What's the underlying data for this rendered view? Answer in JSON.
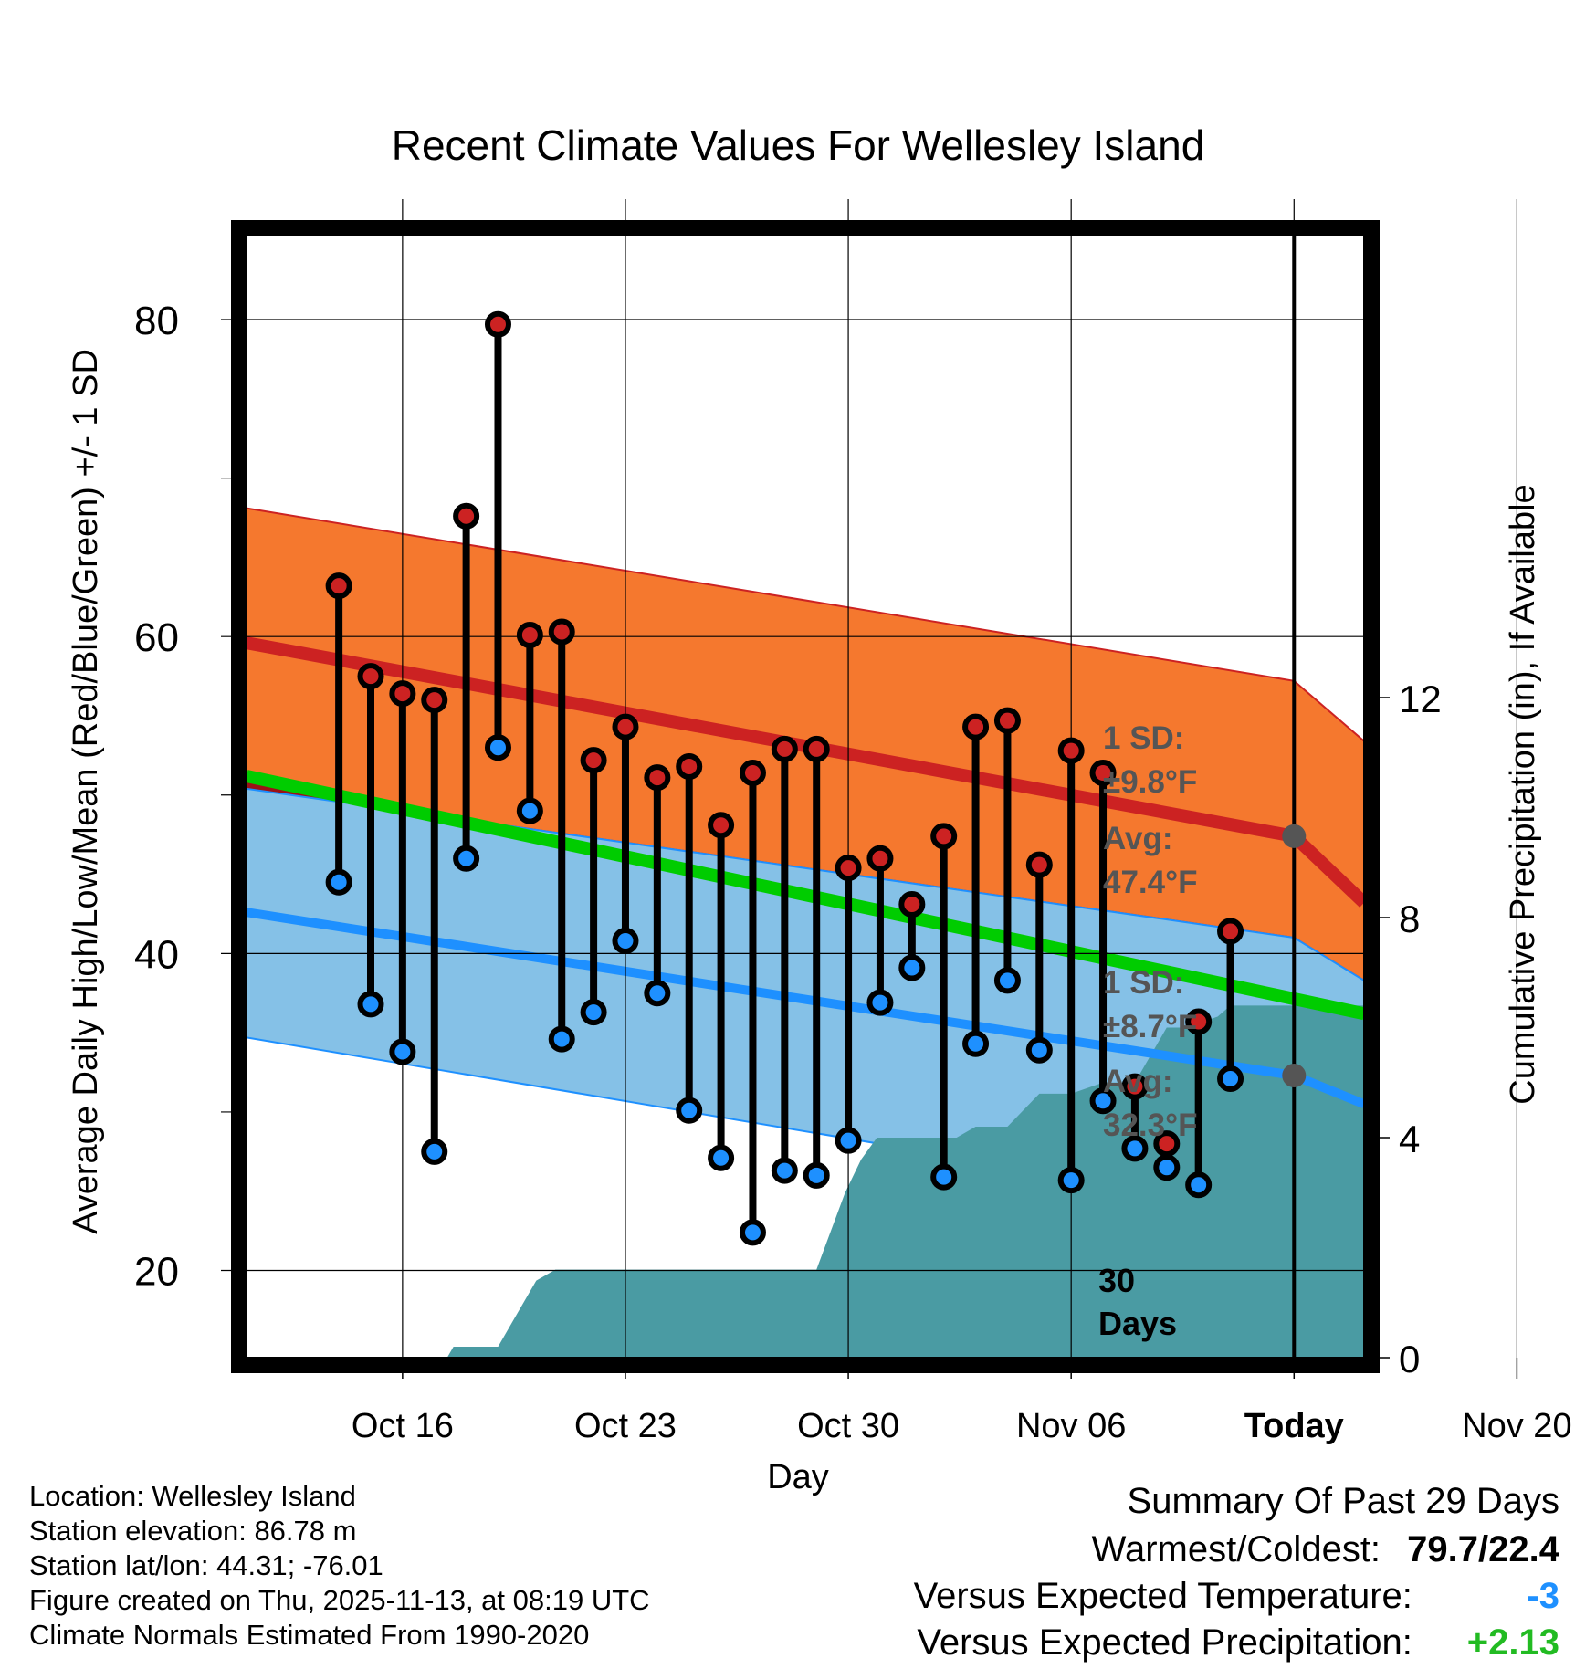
{
  "chart_data": {
    "type": "scatter",
    "title": "Recent Climate Values For Wellesley Island",
    "xlabel": "Day",
    "ylabel": "Average Daily High/Low/Mean (Red/Blue/Green) +/- 1 SD",
    "y2label": "Cumulative Precipitation (in), If Available",
    "xlim": [
      -2.9,
      32.2
    ],
    "ylim": [
      14.5,
      85.3
    ],
    "y2lim": [
      0,
      20.4
    ],
    "grid": true,
    "x_ticks": [
      {
        "day": 2,
        "label": "Oct 16"
      },
      {
        "day": 9,
        "label": "Oct 23"
      },
      {
        "day": 16,
        "label": "Oct 30"
      },
      {
        "day": 23,
        "label": "Nov 06"
      },
      {
        "day": 30,
        "label": "Today"
      },
      {
        "day": 37,
        "label": "Nov 20"
      }
    ],
    "y_ticks": [
      "20",
      "40",
      "60",
      "80"
    ],
    "y2_ticks": [
      "0",
      "4",
      "8",
      "12"
    ],
    "today_day": 30,
    "today_label_line1": "30",
    "today_label_line2": "Days",
    "normal_high": {
      "days": [
        -2.9,
        30,
        32.2
      ],
      "mean": [
        59.6,
        47.4,
        43.2
      ],
      "upper": [
        68.1,
        57.2,
        53.4
      ],
      "label_sd_line1": "1 SD:",
      "label_sd_line2": "±9.8°F",
      "label_avg_line1": "Avg:",
      "label_avg_line2": "47.4°F",
      "mean_color": "#cc2222",
      "band_color": "#f5782e"
    },
    "normal_low": {
      "days": [
        -2.9,
        30,
        32.2
      ],
      "mean": [
        42.6,
        32.3,
        30.5
      ],
      "upper": [
        50.4,
        41.0,
        38.3
      ],
      "lower": [
        34.7,
        23.6,
        22.2
      ],
      "label_sd_line1": "1 SD:",
      "label_sd_line2": "±8.7°F",
      "label_avg_line1": "Avg:",
      "label_avg_line2": "32.3°F",
      "mean_color": "#1e90ff",
      "band_color": "#85c1e7"
    },
    "normal_mean": {
      "days": [
        -2.9,
        32.2
      ],
      "values": [
        51.2,
        36.2
      ],
      "color": "#00cc00"
    },
    "daily": {
      "days": [
        0,
        1,
        2,
        3,
        4,
        5,
        6,
        7,
        8,
        9,
        10,
        11,
        12,
        13,
        14,
        15,
        16,
        17,
        18,
        19,
        20,
        21,
        22,
        23,
        24,
        25,
        26,
        27,
        28
      ],
      "high": [
        63.2,
        57.5,
        56.4,
        56.0,
        67.6,
        79.7,
        60.1,
        60.3,
        52.2,
        54.3,
        51.1,
        51.8,
        48.1,
        51.4,
        52.9,
        52.9,
        45.4,
        46.0,
        43.1,
        47.4,
        54.3,
        54.7,
        45.6,
        52.8,
        51.4,
        31.6,
        28.0,
        35.7,
        41.4
      ],
      "low": [
        44.5,
        36.8,
        33.8,
        27.5,
        46.0,
        53.0,
        49.0,
        34.6,
        36.3,
        40.8,
        37.5,
        30.1,
        27.1,
        22.4,
        26.3,
        26.0,
        28.2,
        36.9,
        39.1,
        25.9,
        34.3,
        38.3,
        33.9,
        25.7,
        30.7,
        27.7,
        26.5,
        25.4,
        32.1
      ],
      "high_color": "#cc2222",
      "low_color": "#1e90ff"
    },
    "precip_cumulative": {
      "days": [
        -2.9,
        3.4,
        3.6,
        4.8,
        5.0,
        5.6,
        6.2,
        6.8,
        7.8,
        8.4,
        9.0,
        10.0,
        11.0,
        12.0,
        13.0,
        14.0,
        15.0,
        15.9,
        16.4,
        16.9,
        17.3,
        18.0,
        19.0,
        19.4,
        20.0,
        21.0,
        22.0,
        23.0,
        24.0,
        25.0,
        26.0,
        26.6,
        27.6,
        28.0,
        30.0,
        32.2
      ],
      "values": [
        0,
        0,
        0.2,
        0.2,
        0.2,
        0.8,
        1.4,
        1.6,
        1.6,
        1.6,
        1.6,
        1.6,
        1.6,
        1.6,
        1.6,
        1.6,
        1.6,
        3.0,
        3.6,
        4.0,
        4.0,
        4.0,
        4.0,
        4.0,
        4.2,
        4.2,
        4.8,
        4.8,
        5.0,
        5.0,
        6.0,
        6.0,
        6.2,
        6.4,
        6.4,
        6.4
      ],
      "color": "#4a9ba3"
    }
  },
  "info": {
    "location": "Location: Wellesley Island",
    "elevation": "Station elevation: 86.78 m",
    "latlon": "Station lat/lon: 44.31; -76.01",
    "created": "Figure created on Thu, 2025-11-13, at 08:19 UTC",
    "normals": "Climate Normals Estimated From 1990-2020"
  },
  "summary": {
    "title": "Summary Of Past 29 Days",
    "warmest_coldest_label": "Warmest/Coldest:",
    "warmest_coldest_value": "79.7/22.4",
    "temp_label": "Versus Expected Temperature:",
    "temp_value": "-3",
    "temp_color": "#1e90ff",
    "precip_label": "Versus Expected Precipitation:",
    "precip_value": "+2.13",
    "precip_color": "#22bb22"
  }
}
